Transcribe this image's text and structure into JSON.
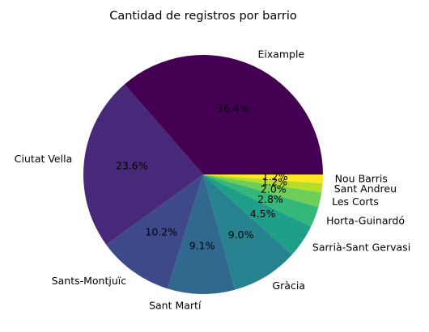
{
  "chart_data": {
    "type": "pie",
    "title": "Cantidad de registros por barrio",
    "start_angle_deg": 0,
    "direction": "counterclockwise",
    "slices": [
      {
        "label": "Eixample",
        "value": 36.4,
        "pct_label": "36.4%",
        "color": "#440154"
      },
      {
        "label": "Ciutat Vella",
        "value": 23.6,
        "pct_label": "23.6%",
        "color": "#482878"
      },
      {
        "label": "Sants-Montjuïc",
        "value": 10.2,
        "pct_label": "10.2%",
        "color": "#3e4989"
      },
      {
        "label": "Sant Martí",
        "value": 9.1,
        "pct_label": "9.1%",
        "color": "#31688e"
      },
      {
        "label": "Gràcia",
        "value": 9.0,
        "pct_label": "9.0%",
        "color": "#26828e"
      },
      {
        "label": "Sarrià-Sant Gervasi",
        "value": 4.5,
        "pct_label": "4.5%",
        "color": "#1f9e89"
      },
      {
        "label": "Horta-Guinardó",
        "value": 2.8,
        "pct_label": "2.8%",
        "color": "#35b779"
      },
      {
        "label": "Les Corts",
        "value": 2.0,
        "pct_label": "2.0%",
        "color": "#6ece58"
      },
      {
        "label": "Sant Andreu",
        "value": 1.2,
        "pct_label": "1.2%",
        "color": "#b5de2b"
      },
      {
        "label": "Nou Barris",
        "value": 1.2,
        "pct_label": "1.2%",
        "color": "#fde725"
      }
    ]
  }
}
